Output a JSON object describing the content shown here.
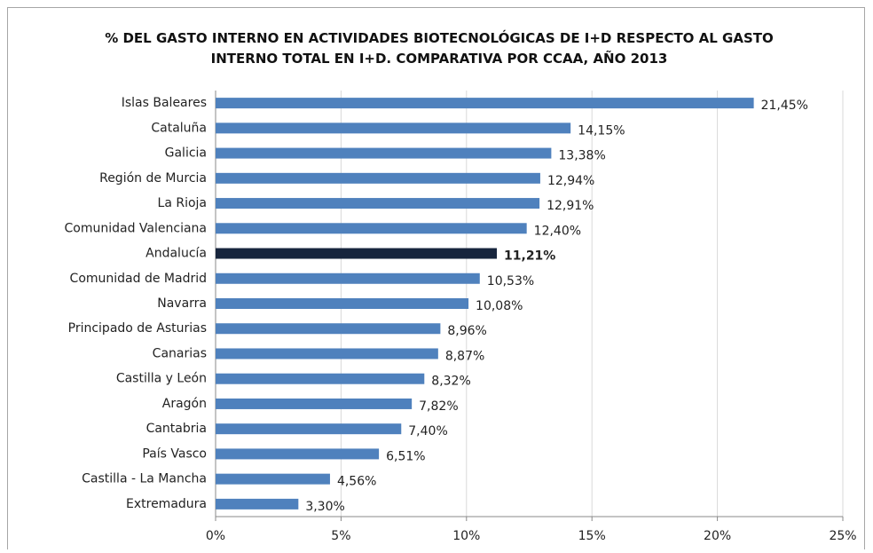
{
  "chart_data": {
    "type": "barh",
    "title": "% DEL GASTO INTERNO EN ACTIVIDADES BIOTECNOLÓGICAS DE I+D RESPECTO AL GASTO INTERNO TOTAL EN I+D. COMPARATIVA POR CCAA, AÑO 2013",
    "categories": [
      "Islas Baleares",
      "Cataluña",
      "Galicia",
      "Región de Murcia",
      "La Rioja",
      "Comunidad Valenciana",
      "Andalucía",
      "Comunidad de Madrid",
      "Navarra",
      "Principado de Asturias",
      "Canarias",
      "Castilla y León",
      "Aragón",
      "Cantabria",
      "País Vasco",
      "Castilla - La Mancha",
      "Extremadura"
    ],
    "values": [
      21.45,
      14.15,
      13.38,
      12.94,
      12.91,
      12.4,
      11.21,
      10.53,
      10.08,
      8.96,
      8.87,
      8.32,
      7.82,
      7.4,
      6.51,
      4.56,
      3.3
    ],
    "value_labels": [
      "21,45%",
      "14,15%",
      "13,38%",
      "12,94%",
      "12,91%",
      "12,40%",
      "11,21%",
      "10,53%",
      "10,08%",
      "8,96%",
      "8,87%",
      "8,32%",
      "7,82%",
      "7,40%",
      "6,51%",
      "4,56%",
      "3,30%"
    ],
    "colors": [
      "#4f81bd",
      "#4f81bd",
      "#4f81bd",
      "#4f81bd",
      "#4f81bd",
      "#4f81bd",
      "#17253d",
      "#4f81bd",
      "#4f81bd",
      "#4f81bd",
      "#4f81bd",
      "#4f81bd",
      "#4f81bd",
      "#4f81bd",
      "#4f81bd",
      "#4f81bd",
      "#4f81bd"
    ],
    "xlim": [
      0,
      25
    ],
    "xticks": [
      {
        "value": 0,
        "label": "0%"
      },
      {
        "value": 5,
        "label": "5%"
      },
      {
        "value": 10,
        "label": "10%"
      },
      {
        "value": 15,
        "label": "15%"
      },
      {
        "value": 20,
        "label": "20%"
      },
      {
        "value": 25,
        "label": "25%"
      }
    ],
    "grid": true
  }
}
